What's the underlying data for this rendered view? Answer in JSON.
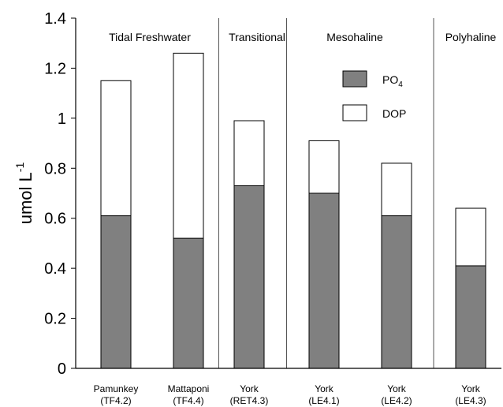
{
  "chart_data": {
    "type": "bar",
    "stacked": true,
    "ylabel": "umol L",
    "ylabel_superscript": "-1",
    "ylim": [
      0,
      1.4
    ],
    "yticks": [
      0,
      0.2,
      0.4,
      0.6,
      0.8,
      1,
      1.2,
      1.4
    ],
    "ytick_labels": [
      "0",
      "0.2",
      "0.4",
      "0.6",
      "0.8",
      "1",
      "1.2",
      "1.4"
    ],
    "categories": [
      {
        "line1": "Pamunkey",
        "line2": "(TF4.2)"
      },
      {
        "line1": "Mattaponi",
        "line2": "(TF4.4)"
      },
      {
        "line1": "York",
        "line2": "(RET4.3)"
      },
      {
        "line1": "York",
        "line2": "(LE4.1)"
      },
      {
        "line1": "York",
        "line2": "(LE4.2)"
      },
      {
        "line1": "York",
        "line2": "(LE4.3)"
      }
    ],
    "series": [
      {
        "name": "PO",
        "name_subscript": "4",
        "color": "#808080",
        "values": [
          0.61,
          0.52,
          0.73,
          0.7,
          0.61,
          0.41
        ]
      },
      {
        "name": "DOP",
        "color": "#ffffff",
        "values": [
          0.54,
          0.74,
          0.26,
          0.21,
          0.21,
          0.23
        ]
      }
    ],
    "regions": [
      {
        "label": "Tidal Freshwater",
        "start": 0,
        "end": 1
      },
      {
        "label": "Transitional",
        "start": 2,
        "end": 2
      },
      {
        "label": "Mesohaline",
        "start": 3,
        "end": 4
      },
      {
        "label": "Polyhaline",
        "start": 5,
        "end": 5
      }
    ],
    "legend_position": "top-right",
    "grid": false
  }
}
